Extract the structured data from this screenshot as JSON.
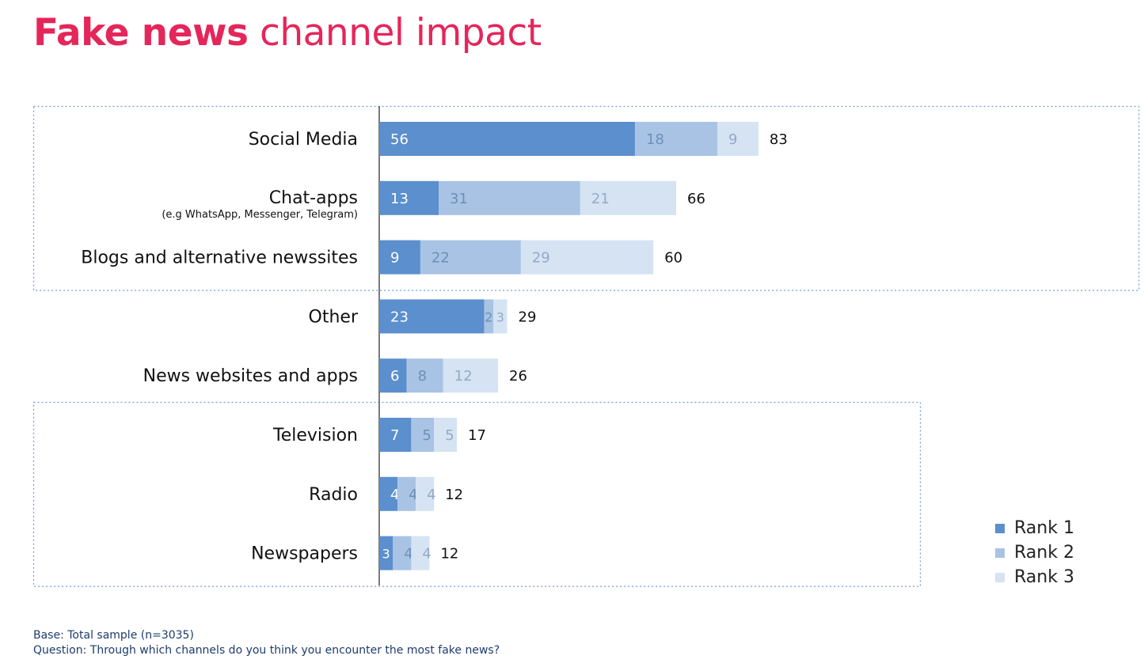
{
  "title": {
    "bold": "Fake news",
    "rest": "channel impact"
  },
  "colors": {
    "title": "#e5265a",
    "rank1": "#5b8fcd",
    "rank2": "#a8c3e4",
    "rank3": "#d5e3f3",
    "box": "#6f9fd2",
    "axis": "#333333"
  },
  "chart_data": {
    "type": "bar",
    "orientation": "horizontal",
    "stacked": true,
    "categories": [
      "Social Media",
      "Chat-apps",
      "Blogs and alternative newssites",
      "Other",
      "News websites and apps",
      "Television",
      "Radio",
      "Newspapers"
    ],
    "category_sublabels": [
      "",
      "(e.g WhatsApp, Messenger, Telegram)",
      "",
      "",
      "",
      "",
      "",
      ""
    ],
    "series": [
      {
        "name": "Rank 1",
        "values": [
          56,
          13,
          9,
          23,
          6,
          7,
          4,
          3
        ]
      },
      {
        "name": "Rank 2",
        "values": [
          18,
          31,
          22,
          2,
          8,
          5,
          4,
          4
        ]
      },
      {
        "name": "Rank 3",
        "values": [
          9,
          21,
          29,
          3,
          12,
          5,
          4,
          4
        ]
      }
    ],
    "totals": [
      83,
      66,
      60,
      29,
      26,
      17,
      12,
      12
    ],
    "xlim": [
      0,
      100
    ],
    "grid": false,
    "legend_position": "bottom-right",
    "groups": [
      {
        "categories": [
          "Social Media",
          "Chat-apps",
          "Blogs and alternative newssites"
        ]
      },
      {
        "categories": [
          "Television",
          "Radio",
          "Newspapers"
        ]
      }
    ]
  },
  "legend": [
    "Rank 1",
    "Rank 2",
    "Rank 3"
  ],
  "footer": {
    "base": "Base: Total sample (n=3035)",
    "question": "Question: Through which channels do you think you encounter the most fake news?"
  }
}
